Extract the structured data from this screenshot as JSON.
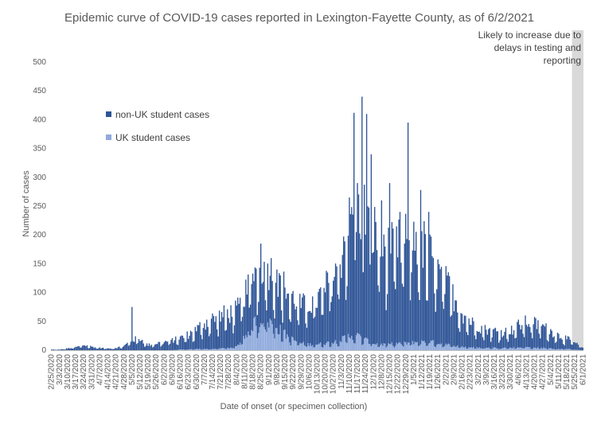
{
  "chart_data": {
    "type": "bar",
    "stacked": true,
    "title": "Epidemic curve of COVID-19 cases reported in Lexington-Fayette County, as of 6/2/2021",
    "xlabel": "Date of onset (or specimen collection)",
    "ylabel": "Number of cases",
    "ylim": [
      0,
      500
    ],
    "y_ticks": [
      0,
      50,
      100,
      150,
      200,
      250,
      300,
      350,
      400,
      450,
      500
    ],
    "x_range": [
      "2/25/2020",
      "6/1/2021"
    ],
    "x_tick_labels": [
      "2/25/2020",
      "3/3/2020",
      "3/10/2020",
      "3/17/2020",
      "3/24/2020",
      "3/31/2020",
      "4/7/2020",
      "4/14/2020",
      "4/21/2020",
      "4/28/2020",
      "5/5/2020",
      "5/12/2020",
      "5/19/2020",
      "5/26/2020",
      "6/2/2020",
      "6/9/2020",
      "6/16/2020",
      "6/23/2020",
      "6/30/2020",
      "7/7/2020",
      "7/14/2020",
      "7/21/2020",
      "7/28/2020",
      "8/4/2020",
      "8/11/2020",
      "8/18/2020",
      "8/25/2020",
      "9/1/2020",
      "9/8/2020",
      "9/15/2020",
      "9/22/2020",
      "9/29/2020",
      "10/6/2020",
      "10/13/2020",
      "10/20/2020",
      "10/27/2020",
      "11/3/2020",
      "11/10/2020",
      "11/17/2020",
      "11/24/2020",
      "12/1/2020",
      "12/8/2020",
      "12/15/2020",
      "12/22/2020",
      "12/29/2020",
      "1/5/2021",
      "1/12/2021",
      "1/19/2021",
      "1/26/2021",
      "2/2/2021",
      "2/9/2021",
      "2/16/2021",
      "2/23/2021",
      "3/2/2021",
      "3/9/2021",
      "3/16/2021",
      "3/23/2021",
      "3/30/2021",
      "4/6/2021",
      "4/13/2021",
      "4/20/2021",
      "4/27/2021",
      "5/4/2021",
      "5/11/2021",
      "5/18/2021",
      "5/25/2021",
      "6/1/2021"
    ],
    "interval": "daily",
    "series": [
      {
        "name": "non-UK student cases",
        "color": "#2f5597"
      },
      {
        "name": "UK student cases",
        "color": "#8faadc"
      }
    ],
    "weekly_approx": [
      {
        "week_of": "2/25/2020",
        "non_uk_avg": 1,
        "uk_avg": 0
      },
      {
        "week_of": "3/3/2020",
        "non_uk_avg": 1,
        "uk_avg": 0
      },
      {
        "week_of": "3/10/2020",
        "non_uk_avg": 3,
        "uk_avg": 0
      },
      {
        "week_of": "3/17/2020",
        "non_uk_avg": 5,
        "uk_avg": 0
      },
      {
        "week_of": "3/24/2020",
        "non_uk_avg": 9,
        "uk_avg": 0
      },
      {
        "week_of": "3/31/2020",
        "non_uk_avg": 6,
        "uk_avg": 0
      },
      {
        "week_of": "4/7/2020",
        "non_uk_avg": 4,
        "uk_avg": 0
      },
      {
        "week_of": "4/14/2020",
        "non_uk_avg": 3,
        "uk_avg": 0
      },
      {
        "week_of": "4/21/2020",
        "non_uk_avg": 4,
        "uk_avg": 0
      },
      {
        "week_of": "4/28/2020",
        "non_uk_avg": 7,
        "uk_avg": 0
      },
      {
        "week_of": "5/5/2020",
        "non_uk_avg": 18,
        "uk_avg": 0
      },
      {
        "week_of": "5/12/2020",
        "non_uk_avg": 20,
        "uk_avg": 0
      },
      {
        "week_of": "5/19/2020",
        "non_uk_avg": 9,
        "uk_avg": 0
      },
      {
        "week_of": "5/26/2020",
        "non_uk_avg": 12,
        "uk_avg": 0
      },
      {
        "week_of": "6/2/2020",
        "non_uk_avg": 14,
        "uk_avg": 0
      },
      {
        "week_of": "6/9/2020",
        "non_uk_avg": 17,
        "uk_avg": 0
      },
      {
        "week_of": "6/16/2020",
        "non_uk_avg": 20,
        "uk_avg": 1
      },
      {
        "week_of": "6/23/2020",
        "non_uk_avg": 26,
        "uk_avg": 1
      },
      {
        "week_of": "6/30/2020",
        "non_uk_avg": 34,
        "uk_avg": 2
      },
      {
        "week_of": "7/7/2020",
        "non_uk_avg": 45,
        "uk_avg": 2
      },
      {
        "week_of": "7/14/2020",
        "non_uk_avg": 52,
        "uk_avg": 2
      },
      {
        "week_of": "7/21/2020",
        "non_uk_avg": 56,
        "uk_avg": 3
      },
      {
        "week_of": "7/28/2020",
        "non_uk_avg": 60,
        "uk_avg": 4
      },
      {
        "week_of": "8/4/2020",
        "non_uk_avg": 62,
        "uk_avg": 6
      },
      {
        "week_of": "8/11/2020",
        "non_uk_avg": 72,
        "uk_avg": 25
      },
      {
        "week_of": "8/18/2020",
        "non_uk_avg": 88,
        "uk_avg": 45
      },
      {
        "week_of": "8/25/2020",
        "non_uk_avg": 95,
        "uk_avg": 55
      },
      {
        "week_of": "9/1/2020",
        "non_uk_avg": 92,
        "uk_avg": 50
      },
      {
        "week_of": "9/8/2020",
        "non_uk_avg": 88,
        "uk_avg": 40
      },
      {
        "week_of": "9/15/2020",
        "non_uk_avg": 80,
        "uk_avg": 28
      },
      {
        "week_of": "9/22/2020",
        "non_uk_avg": 70,
        "uk_avg": 18
      },
      {
        "week_of": "9/29/2020",
        "non_uk_avg": 66,
        "uk_avg": 12
      },
      {
        "week_of": "10/6/2020",
        "non_uk_avg": 70,
        "uk_avg": 10
      },
      {
        "week_of": "10/13/2020",
        "non_uk_avg": 78,
        "uk_avg": 10
      },
      {
        "week_of": "10/20/2020",
        "non_uk_avg": 95,
        "uk_avg": 12
      },
      {
        "week_of": "10/27/2020",
        "non_uk_avg": 118,
        "uk_avg": 14
      },
      {
        "week_of": "11/3/2020",
        "non_uk_avg": 150,
        "uk_avg": 18
      },
      {
        "week_of": "11/10/2020",
        "non_uk_avg": 200,
        "uk_avg": 25
      },
      {
        "week_of": "11/17/2020",
        "non_uk_avg": 225,
        "uk_avg": 25
      },
      {
        "week_of": "11/24/2020",
        "non_uk_avg": 215,
        "uk_avg": 18
      },
      {
        "week_of": "12/1/2020",
        "non_uk_avg": 195,
        "uk_avg": 12
      },
      {
        "week_of": "12/8/2020",
        "non_uk_avg": 175,
        "uk_avg": 10
      },
      {
        "week_of": "12/15/2020",
        "non_uk_avg": 160,
        "uk_avg": 10
      },
      {
        "week_of": "12/22/2020",
        "non_uk_avg": 165,
        "uk_avg": 12
      },
      {
        "week_of": "12/29/2020",
        "non_uk_avg": 180,
        "uk_avg": 12
      },
      {
        "week_of": "1/5/2021",
        "non_uk_avg": 185,
        "uk_avg": 14
      },
      {
        "week_of": "1/12/2021",
        "non_uk_avg": 170,
        "uk_avg": 14
      },
      {
        "week_of": "1/19/2021",
        "non_uk_avg": 150,
        "uk_avg": 15
      },
      {
        "week_of": "1/26/2021",
        "non_uk_avg": 125,
        "uk_avg": 12
      },
      {
        "week_of": "2/2/2021",
        "non_uk_avg": 105,
        "uk_avg": 10
      },
      {
        "week_of": "2/9/2021",
        "non_uk_avg": 85,
        "uk_avg": 8
      },
      {
        "week_of": "2/16/2021",
        "non_uk_avg": 60,
        "uk_avg": 6
      },
      {
        "week_of": "2/23/2021",
        "non_uk_avg": 45,
        "uk_avg": 5
      },
      {
        "week_of": "3/2/2021",
        "non_uk_avg": 38,
        "uk_avg": 4
      },
      {
        "week_of": "3/9/2021",
        "non_uk_avg": 32,
        "uk_avg": 4
      },
      {
        "week_of": "3/16/2021",
        "non_uk_avg": 30,
        "uk_avg": 4
      },
      {
        "week_of": "3/23/2021",
        "non_uk_avg": 28,
        "uk_avg": 4
      },
      {
        "week_of": "3/30/2021",
        "non_uk_avg": 30,
        "uk_avg": 4
      },
      {
        "week_of": "4/6/2021",
        "non_uk_avg": 38,
        "uk_avg": 5
      },
      {
        "week_of": "4/13/2021",
        "non_uk_avg": 44,
        "uk_avg": 5
      },
      {
        "week_of": "4/20/2021",
        "non_uk_avg": 42,
        "uk_avg": 4
      },
      {
        "week_of": "4/27/2021",
        "non_uk_avg": 38,
        "uk_avg": 4
      },
      {
        "week_of": "5/4/2021",
        "non_uk_avg": 30,
        "uk_avg": 3
      },
      {
        "week_of": "5/11/2021",
        "non_uk_avg": 24,
        "uk_avg": 2
      },
      {
        "week_of": "5/18/2021",
        "non_uk_avg": 18,
        "uk_avg": 2
      },
      {
        "week_of": "5/25/2021",
        "non_uk_avg": 12,
        "uk_avg": 1
      },
      {
        "week_of": "6/1/2021",
        "non_uk_avg": 4,
        "uk_avg": 0
      }
    ],
    "spikes": [
      {
        "date": "5/5/2020",
        "total": 75
      },
      {
        "date": "8/25/2020",
        "total": 185
      },
      {
        "date": "9/8/2020",
        "total": 140
      },
      {
        "date": "11/10/2020",
        "total": 265
      },
      {
        "date": "11/14/2020",
        "total": 412
      },
      {
        "date": "11/17/2020",
        "total": 290
      },
      {
        "date": "11/21/2020",
        "total": 440
      },
      {
        "date": "11/25/2020",
        "total": 410
      },
      {
        "date": "11/29/2020",
        "total": 340
      },
      {
        "date": "12/8/2020",
        "total": 260
      },
      {
        "date": "12/15/2020",
        "total": 290
      },
      {
        "date": "12/24/2020",
        "total": 240
      },
      {
        "date": "12/31/2020",
        "total": 395
      },
      {
        "date": "1/11/2021",
        "total": 278
      },
      {
        "date": "1/18/2021",
        "total": 240
      }
    ],
    "shaded_region": {
      "from": "5/23/2021",
      "to": "6/1/2021",
      "color": "#d9d9d9",
      "annotation": "Likely to increase due to delays in testing and reporting"
    },
    "legend": "top-left",
    "grid": false
  }
}
